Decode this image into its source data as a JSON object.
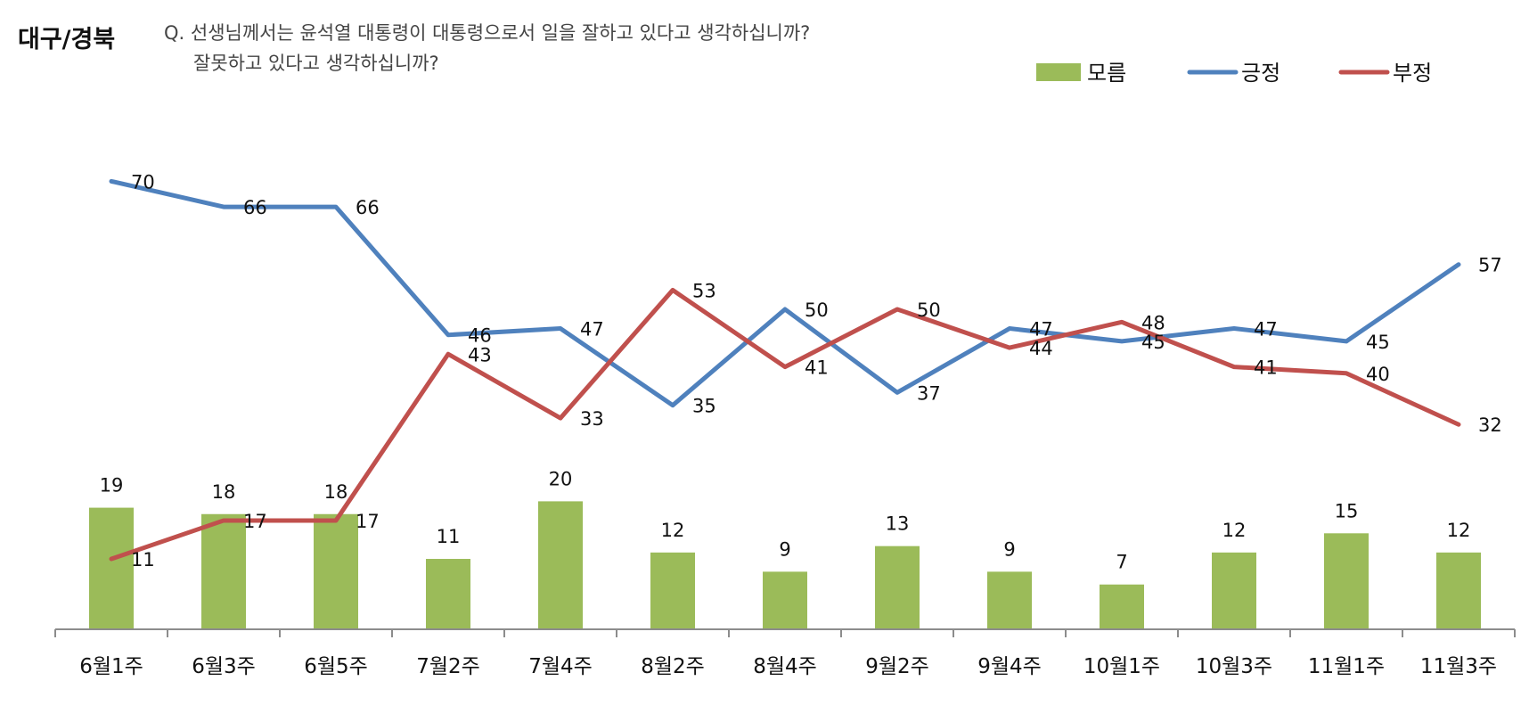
{
  "header": {
    "region": "대구/경북",
    "question_line1": "Q. 선생님께서는 윤석열 대통령이 대통령으로서 일을 잘하고 있다고 생각하십니까?",
    "question_line2": "잘못하고 있다고 생각하십니까?"
  },
  "colors": {
    "unknown": "#9BBB59",
    "positive": "#4F81BD",
    "negative": "#C0504D",
    "axis": "#8C8C8C"
  },
  "chart_data": {
    "type": "bar+line",
    "title": "대구/경북",
    "categories": [
      "6월1주",
      "6월3주",
      "6월5주",
      "7월2주",
      "7월4주",
      "8월2주",
      "8월4주",
      "9월2주",
      "9월4주",
      "10월1주",
      "10월3주",
      "11월1주",
      "11월3주"
    ],
    "series": [
      {
        "name": "모름",
        "kind": "bar",
        "color": "#9BBB59",
        "values": [
          19,
          18,
          18,
          11,
          20,
          12,
          9,
          13,
          9,
          7,
          12,
          15,
          12
        ]
      },
      {
        "name": "긍정",
        "kind": "line",
        "color": "#4F81BD",
        "values": [
          70,
          66,
          66,
          46,
          47,
          35,
          50,
          37,
          47,
          45,
          47,
          45,
          57
        ]
      },
      {
        "name": "부정",
        "kind": "line",
        "color": "#C0504D",
        "values": [
          11,
          17,
          17,
          43,
          33,
          53,
          41,
          50,
          44,
          48,
          41,
          40,
          32
        ]
      }
    ],
    "legend": [
      "모름",
      "긍정",
      "부정"
    ],
    "legend_position": "top-right",
    "ylim": [
      0,
      85
    ],
    "grid": false
  }
}
